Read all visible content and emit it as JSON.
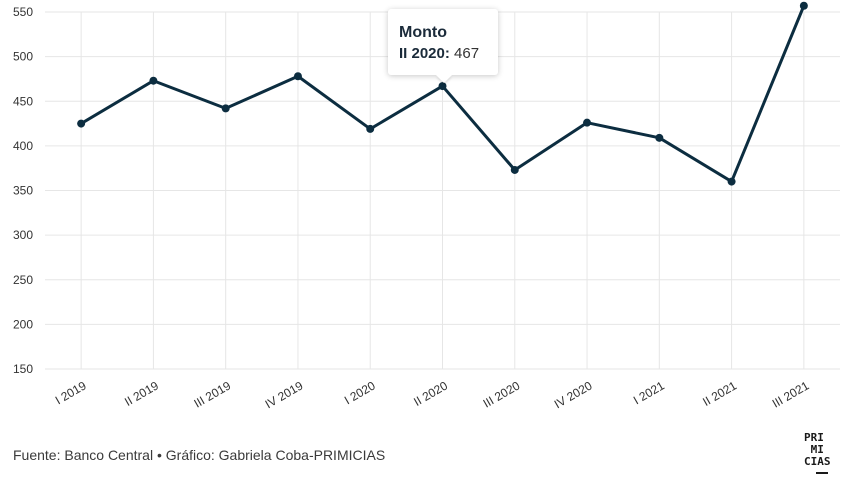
{
  "chart_data": {
    "type": "line",
    "title": "",
    "xlabel": "",
    "ylabel": "",
    "categories": [
      "I 2019",
      "II 2019",
      "III 2019",
      "IV 2019",
      "I 2020",
      "II 2020",
      "III 2020",
      "IV 2020",
      "I 2021",
      "II 2021",
      "III 2021"
    ],
    "series": [
      {
        "name": "Monto",
        "values": [
          425,
          473,
          442,
          478,
          419,
          467,
          373,
          426,
          409,
          360,
          557
        ],
        "color": "#0c2d40"
      }
    ],
    "ylim": [
      150,
      550
    ],
    "yticks": [
      150,
      200,
      250,
      300,
      350,
      400,
      450,
      500,
      550
    ],
    "grid": true,
    "legend": "none"
  },
  "tooltip": {
    "title": "Monto",
    "category": "II 2020:",
    "value": "467"
  },
  "footer": {
    "source": "Fuente: Banco Central • Gráfico: Gabriela Coba-PRIMICIAS"
  },
  "logo": {
    "line1": "PRI",
    "line2": " MI",
    "line3": "CIAS",
    "alt": "PRIMICIAS"
  }
}
